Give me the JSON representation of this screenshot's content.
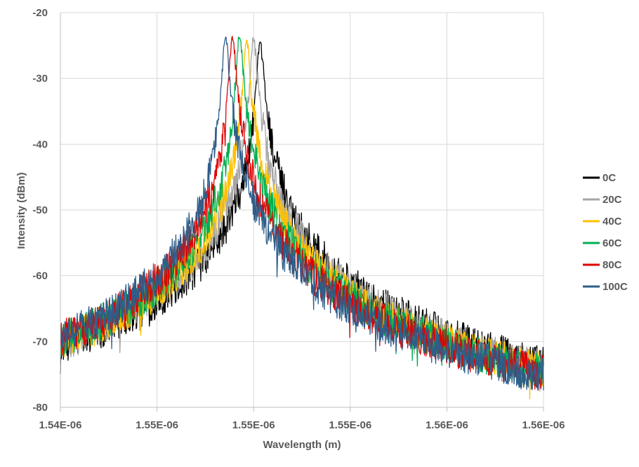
{
  "chart_data": {
    "type": "line",
    "xlabel": "Wavelength (m)",
    "ylabel": "Intensity (dBm)",
    "x_tick_labels": [
      "1.54E-06",
      "1.55E-06",
      "1.55E-06",
      "1.55E-06",
      "1.56E-06",
      "1.56E-06"
    ],
    "y_ticks": [
      -20,
      -30,
      -40,
      -50,
      -60,
      -70,
      -80
    ],
    "x_range_units": [
      1.545e-06,
      1.57e-06
    ],
    "ylim": [
      -80,
      -20
    ],
    "grid": true,
    "legend_position": "right",
    "series": [
      {
        "name": "0C",
        "color": "#000000",
        "peak_wavelength": 1.55533e-06,
        "peak_dbm": -24.5,
        "left_edge_dbm": -70.5,
        "right_edge_dbm": -73.5
      },
      {
        "name": "20C",
        "color": "#a5a5a5",
        "peak_wavelength": 1.55498e-06,
        "peak_dbm": -23.8,
        "left_edge_dbm": -70.2,
        "right_edge_dbm": -74.0
      },
      {
        "name": "40C",
        "color": "#ffc000",
        "peak_wavelength": 1.55462e-06,
        "peak_dbm": -24.2,
        "left_edge_dbm": -70.0,
        "right_edge_dbm": -74.3
      },
      {
        "name": "60C",
        "color": "#00b050",
        "peak_wavelength": 1.55426e-06,
        "peak_dbm": -23.5,
        "left_edge_dbm": -69.8,
        "right_edge_dbm": -74.6
      },
      {
        "name": "80C",
        "color": "#e00000",
        "peak_wavelength": 1.55389e-06,
        "peak_dbm": -23.6,
        "left_edge_dbm": -69.5,
        "right_edge_dbm": -74.9
      },
      {
        "name": "100C",
        "color": "#2e5e8a",
        "peak_wavelength": 1.55353e-06,
        "peak_dbm": -23.7,
        "left_edge_dbm": -69.2,
        "right_edge_dbm": -75.2
      }
    ]
  }
}
